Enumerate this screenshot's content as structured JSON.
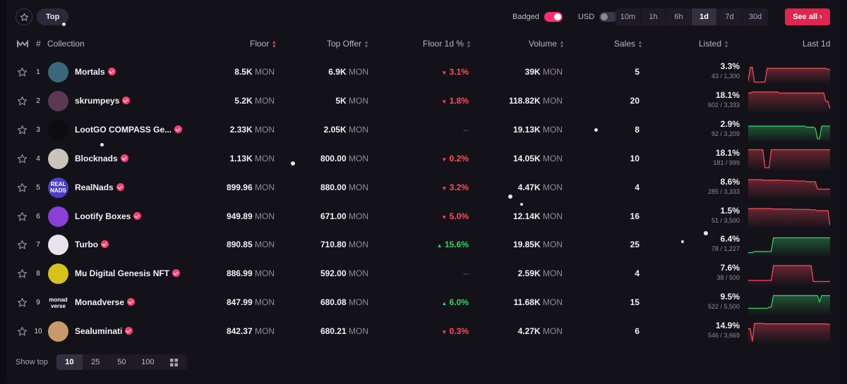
{
  "tabs": {
    "top_label": "Top"
  },
  "filters": {
    "badged_label": "Badged",
    "badged_on": true,
    "usd_label": "USD",
    "usd_on": false
  },
  "timeframes": [
    "10m",
    "1h",
    "6h",
    "1d",
    "7d",
    "30d"
  ],
  "active_timeframe": "1d",
  "see_all_label": "See all",
  "columns": {
    "rank": "#",
    "collection": "Collection",
    "floor": "Floor",
    "top_offer": "Top Offer",
    "floor_change": "Floor 1d %",
    "volume": "Volume",
    "sales": "Sales",
    "listed": "Listed",
    "last": "Last 1d"
  },
  "unit": "MON",
  "colors": {
    "accent": "#e0264e",
    "up": "#35d26b",
    "down": "#ff4b5c"
  },
  "rows": [
    {
      "rank": "1",
      "name": "Mortals",
      "avatar_text": "",
      "avatar_bg": "#3a6a7a",
      "floor": "8.5K",
      "top_offer": "6.9K",
      "change": "3.1%",
      "dir": "down",
      "volume": "39K",
      "sales": "5",
      "listed_pct": "3.3%",
      "listed_count": "43 / 1,300",
      "spark": [
        0.9,
        0.25,
        0.25,
        0.95,
        0.95,
        0.95,
        0.95,
        0.95,
        0.95,
        0.3,
        0.3,
        0.3,
        0.3,
        0.3,
        0.3,
        0.3,
        0.3,
        0.3,
        0.3,
        0.3,
        0.3,
        0.3,
        0.3,
        0.3,
        0.3,
        0.3,
        0.3,
        0.3,
        0.3,
        0.3,
        0.3,
        0.3,
        0.3,
        0.3,
        0.3,
        0.3,
        0.3,
        0.3,
        0.35,
        0.35
      ]
    },
    {
      "rank": "2",
      "name": "skrumpeys",
      "avatar_text": "",
      "avatar_bg": "#5a3a52",
      "floor": "5.2K",
      "top_offer": "5K",
      "change": "1.8%",
      "dir": "down",
      "volume": "118.82K",
      "sales": "20",
      "listed_pct": "18.1%",
      "listed_count": "602 / 3,333",
      "spark": [
        0.1,
        0.1,
        0.05,
        0.05,
        0.05,
        0.05,
        0.05,
        0.05,
        0.05,
        0.05,
        0.05,
        0.05,
        0.05,
        0.05,
        0.05,
        0.1,
        0.1,
        0.1,
        0.1,
        0.1,
        0.1,
        0.1,
        0.1,
        0.1,
        0.1,
        0.1,
        0.1,
        0.1,
        0.1,
        0.1,
        0.1,
        0.1,
        0.1,
        0.1,
        0.1,
        0.1,
        0.1,
        0.5,
        0.5,
        0.85
      ]
    },
    {
      "rank": "3",
      "name": "LootGO COMPASS Ge...",
      "avatar_text": "",
      "avatar_bg": "#0d0d10",
      "floor": "2.33K",
      "top_offer": "2.05K",
      "change": "--",
      "dir": "none",
      "volume": "19.13K",
      "sales": "8",
      "listed_pct": "2.9%",
      "listed_count": "92 / 3,209",
      "spark": [
        0.3,
        0.3,
        0.3,
        0.3,
        0.3,
        0.3,
        0.3,
        0.3,
        0.3,
        0.3,
        0.3,
        0.3,
        0.3,
        0.3,
        0.3,
        0.3,
        0.3,
        0.3,
        0.3,
        0.3,
        0.3,
        0.3,
        0.3,
        0.3,
        0.3,
        0.3,
        0.3,
        0.3,
        0.35,
        0.35,
        0.35,
        0.35,
        0.4,
        0.9,
        0.9,
        0.3,
        0.3,
        0.3,
        0.3,
        0.3
      ]
    },
    {
      "rank": "4",
      "name": "Blocknads",
      "avatar_text": "",
      "avatar_bg": "#c9c3bb",
      "floor": "1.13K",
      "top_offer": "800.00",
      "change": "0.2%",
      "dir": "down",
      "volume": "14.05K",
      "sales": "10",
      "listed_pct": "18.1%",
      "listed_count": "181 / 999",
      "spark": [
        0.05,
        0.05,
        0.05,
        0.05,
        0.05,
        0.05,
        0.05,
        0.05,
        0.9,
        0.9,
        0.9,
        0.05,
        0.05,
        0.05,
        0.05,
        0.05,
        0.05,
        0.05,
        0.05,
        0.05,
        0.05,
        0.05,
        0.05,
        0.05,
        0.05,
        0.05,
        0.05,
        0.05,
        0.05,
        0.05,
        0.05,
        0.05,
        0.05,
        0.05,
        0.05,
        0.05,
        0.05,
        0.05,
        0.05,
        0.05
      ]
    },
    {
      "rank": "5",
      "name": "RealNads",
      "avatar_text": "REAL NADS",
      "avatar_bg": "#4b3fc4",
      "floor": "899.96",
      "top_offer": "880.00",
      "change": "3.2%",
      "dir": "down",
      "volume": "4.47K",
      "sales": "4",
      "listed_pct": "8.6%",
      "listed_count": "285 / 3,333",
      "spark": [
        0.1,
        0.1,
        0.1,
        0.1,
        0.1,
        0.1,
        0.1,
        0.12,
        0.12,
        0.12,
        0.12,
        0.12,
        0.12,
        0.12,
        0.12,
        0.12,
        0.14,
        0.14,
        0.14,
        0.14,
        0.14,
        0.14,
        0.16,
        0.16,
        0.16,
        0.16,
        0.16,
        0.16,
        0.2,
        0.2,
        0.2,
        0.2,
        0.2,
        0.55,
        0.55,
        0.55,
        0.55,
        0.55,
        0.55,
        0.55
      ]
    },
    {
      "rank": "6",
      "name": "Lootify Boxes",
      "avatar_text": "",
      "avatar_bg": "#8a3fd8",
      "floor": "949.89",
      "top_offer": "671.00",
      "change": "5.0%",
      "dir": "down",
      "volume": "12.14K",
      "sales": "16",
      "listed_pct": "1.5%",
      "listed_count": "51 / 3,500",
      "spark": [
        0.1,
        0.1,
        0.1,
        0.1,
        0.1,
        0.1,
        0.1,
        0.1,
        0.1,
        0.1,
        0.1,
        0.1,
        0.12,
        0.12,
        0.12,
        0.12,
        0.12,
        0.12,
        0.12,
        0.12,
        0.12,
        0.14,
        0.14,
        0.14,
        0.14,
        0.14,
        0.14,
        0.14,
        0.14,
        0.14,
        0.16,
        0.16,
        0.16,
        0.2,
        0.2,
        0.2,
        0.2,
        0.2,
        0.2,
        0.9
      ]
    },
    {
      "rank": "7",
      "name": "Turbo",
      "avatar_text": "",
      "avatar_bg": "#e8e4ee",
      "floor": "890.85",
      "top_offer": "710.80",
      "change": "15.6%",
      "dir": "up",
      "volume": "19.85K",
      "sales": "25",
      "listed_pct": "6.4%",
      "listed_count": "78 / 1,227",
      "spark": [
        0.85,
        0.85,
        0.85,
        0.8,
        0.8,
        0.8,
        0.8,
        0.8,
        0.8,
        0.8,
        0.8,
        0.8,
        0.15,
        0.15,
        0.15,
        0.15,
        0.15,
        0.15,
        0.15,
        0.15,
        0.15,
        0.15,
        0.15,
        0.15,
        0.15,
        0.15,
        0.15,
        0.15,
        0.15,
        0.15,
        0.15,
        0.15,
        0.15,
        0.15,
        0.15,
        0.15,
        0.15,
        0.15,
        0.15,
        0.15
      ]
    },
    {
      "rank": "8",
      "name": "Mu Digital Genesis NFT",
      "avatar_text": "",
      "avatar_bg": "#d6c21b",
      "floor": "886.99",
      "top_offer": "592.00",
      "change": "--",
      "dir": "none",
      "volume": "2.59K",
      "sales": "4",
      "listed_pct": "7.6%",
      "listed_count": "38 / 500",
      "spark": [
        0.8,
        0.8,
        0.8,
        0.8,
        0.8,
        0.8,
        0.8,
        0.8,
        0.8,
        0.8,
        0.8,
        0.8,
        0.1,
        0.1,
        0.1,
        0.1,
        0.1,
        0.1,
        0.1,
        0.1,
        0.1,
        0.1,
        0.1,
        0.1,
        0.1,
        0.1,
        0.1,
        0.1,
        0.1,
        0.1,
        0.1,
        0.85,
        0.85,
        0.85,
        0.85,
        0.85,
        0.85,
        0.85,
        0.85,
        0.85
      ]
    },
    {
      "rank": "9",
      "name": "Monadverse",
      "avatar_text": "monad verse",
      "avatar_bg": "#141219",
      "floor": "847.99",
      "top_offer": "680.08",
      "change": "6.0%",
      "dir": "up",
      "volume": "11.68K",
      "sales": "15",
      "listed_pct": "9.5%",
      "listed_count": "522 / 5,500",
      "spark": [
        0.75,
        0.75,
        0.75,
        0.75,
        0.75,
        0.75,
        0.75,
        0.75,
        0.75,
        0.75,
        0.7,
        0.7,
        0.15,
        0.15,
        0.15,
        0.15,
        0.15,
        0.15,
        0.15,
        0.15,
        0.15,
        0.15,
        0.15,
        0.15,
        0.15,
        0.15,
        0.15,
        0.15,
        0.15,
        0.15,
        0.15,
        0.15,
        0.15,
        0.15,
        0.45,
        0.15,
        0.15,
        0.15,
        0.15,
        0.15
      ]
    },
    {
      "rank": "10",
      "name": "Sealuminati",
      "avatar_text": "",
      "avatar_bg": "#c79a6a",
      "floor": "842.37",
      "top_offer": "680.21",
      "change": "0.3%",
      "dir": "down",
      "volume": "4.27K",
      "sales": "6",
      "listed_pct": "14.9%",
      "listed_count": "546 / 3,669",
      "spark": [
        0.35,
        0.35,
        0.95,
        0.1,
        0.1,
        0.1,
        0.1,
        0.1,
        0.12,
        0.12,
        0.12,
        0.12,
        0.12,
        0.12,
        0.12,
        0.12,
        0.12,
        0.12,
        0.12,
        0.12,
        0.12,
        0.12,
        0.12,
        0.12,
        0.12,
        0.12,
        0.12,
        0.12,
        0.12,
        0.12,
        0.12,
        0.12,
        0.12,
        0.12,
        0.12,
        0.12,
        0.12,
        0.12,
        0.14,
        0.14
      ]
    }
  ],
  "footer": {
    "label": "Show top",
    "options": [
      "10",
      "25",
      "50",
      "100"
    ],
    "active": "10"
  }
}
